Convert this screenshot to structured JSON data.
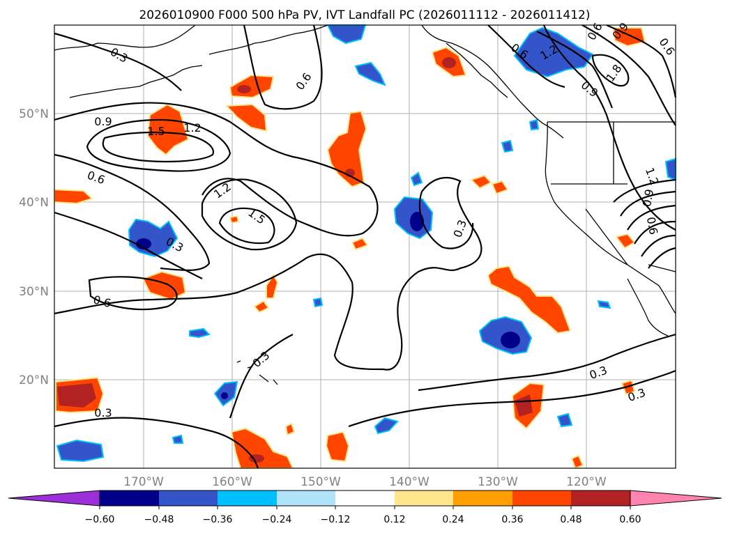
{
  "title": "2026010900 F000 500 hPa PV, IVT Landfall PC (2026011112 - 2026011412)",
  "map": {
    "lon_range": [
      -180,
      -110
    ],
    "lat_range": [
      10,
      60
    ],
    "lat_labels": [
      "20°N",
      "30°N",
      "40°N",
      "50°N"
    ],
    "lon_labels": [
      "170°W",
      "160°W",
      "150°W",
      "140°W",
      "130°W",
      "120°W"
    ]
  },
  "contour_labels": [
    "0.3",
    "0.9",
    "1.5",
    "1.2",
    "0.6",
    "0.6",
    "1.2",
    "1.5",
    "0.3",
    "0.6",
    "0.3",
    "0.3",
    "0.3",
    "0.3",
    "0.3",
    "0.6",
    "1.2",
    "0.9",
    "1.8",
    "0.9",
    "0.6",
    "1.2",
    "0.9",
    "0.6",
    "0.6"
  ],
  "colorbar": {
    "ticks": [
      "−0.60",
      "−0.48",
      "−0.36",
      "−0.24",
      "−0.12",
      "0.12",
      "0.24",
      "0.36",
      "0.48",
      "0.60"
    ],
    "colors": [
      "#9b30d9",
      "#00008b",
      "#3455c9",
      "#00bfff",
      "#b0e2fa",
      "#ffffff",
      "#ffe68c",
      "#ffa000",
      "#ff4500",
      "#b22222",
      "#ff85b0"
    ]
  }
}
